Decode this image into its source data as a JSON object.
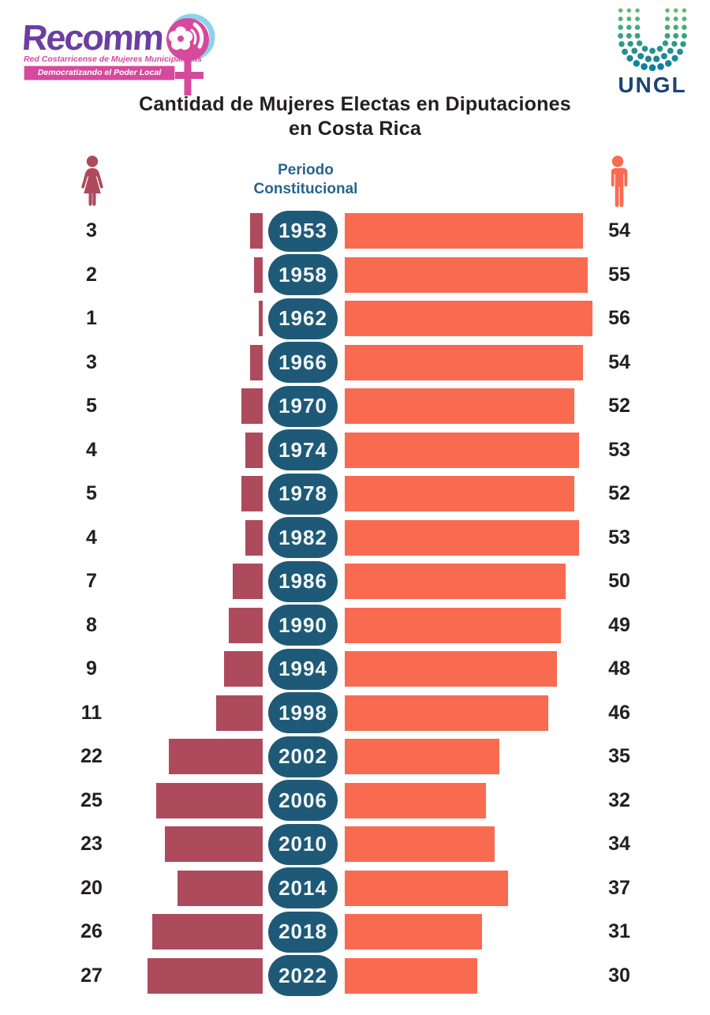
{
  "header": {
    "recomm_logo": {
      "brand": "Recomm",
      "tagline": "Red Costarricense de Mujeres Municipalistas",
      "banner": "Democratizando el Poder Local"
    },
    "ungl_logo": {
      "brand": "UNGL"
    },
    "title_line1": "Cantidad de Mujeres Electas en Diputaciones",
    "title_line2": "en Costa Rica"
  },
  "legend": {
    "left_icon": "woman-icon",
    "right_icon": "man-icon",
    "center_label_line1": "Periodo",
    "center_label_line2": "Constitucional"
  },
  "colors": {
    "women_bar": "#ad4b5c",
    "men_bar": "#f96b51",
    "year_pill": "#1e5a77",
    "pill_text": "#f2f7f8",
    "title_text": "#231f20",
    "period_label": "#26648e",
    "recomm_purple": "#6b3fa2",
    "recomm_pink": "#d6499c",
    "recomm_light_blue": "#8ed2ea",
    "ungl_text": "#1d4474",
    "ungl_green": "#66c069",
    "ungl_teal": "#0b7f9d"
  },
  "chart_data": {
    "type": "bar",
    "subtype": "bidirectional-horizontal",
    "title": "Cantidad de Mujeres Electas en Diputaciones en Costa Rica",
    "center_axis_label": "Periodo Constitucional",
    "legend_position": "top",
    "grid": false,
    "categories": [
      "1953",
      "1958",
      "1962",
      "1966",
      "1970",
      "1974",
      "1978",
      "1982",
      "1986",
      "1990",
      "1994",
      "1998",
      "2002",
      "2006",
      "2010",
      "2014",
      "2018",
      "2022"
    ],
    "series": [
      {
        "name": "Mujeres",
        "side": "left",
        "color": "#ad4b5c",
        "values": [
          3,
          2,
          1,
          3,
          5,
          4,
          5,
          4,
          7,
          8,
          9,
          11,
          22,
          25,
          23,
          20,
          26,
          27
        ]
      },
      {
        "name": "Hombres",
        "side": "right",
        "color": "#f96b51",
        "values": [
          54,
          55,
          56,
          54,
          52,
          53,
          52,
          53,
          50,
          49,
          48,
          46,
          35,
          32,
          34,
          37,
          31,
          30
        ]
      }
    ]
  }
}
